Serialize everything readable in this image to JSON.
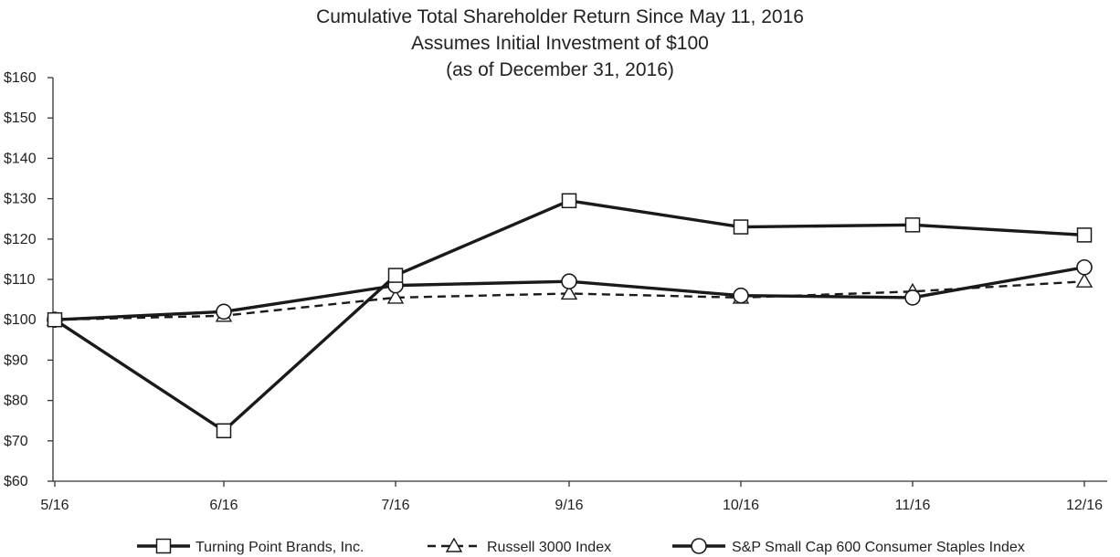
{
  "chart_data": {
    "type": "line",
    "title": "Cumulative Total Shareholder Return Since May 11, 2016",
    "subtitle": "Assumes Initial Investment of $100",
    "subtitle2": "(as of December 31, 2016)",
    "xlabel": "",
    "ylabel": "",
    "categories": [
      "5/16",
      "6/16",
      "7/16",
      "9/16",
      "10/16",
      "11/16",
      "12/16"
    ],
    "ylim": [
      60,
      160
    ],
    "yticks": [
      60,
      70,
      80,
      90,
      100,
      110,
      120,
      130,
      140,
      150,
      160
    ],
    "ytick_labels": [
      "$60",
      "$70",
      "$80",
      "$90",
      "$100",
      "$110",
      "$120",
      "$130",
      "$140",
      "$150",
      "$160"
    ],
    "grid": false,
    "legend_position": "bottom",
    "series": [
      {
        "name": "Turning Point Brands, Inc.",
        "marker": "square",
        "dash": "solid",
        "values": [
          100,
          72.5,
          111,
          129.5,
          123,
          123.5,
          121
        ]
      },
      {
        "name": "Russell 3000 Index",
        "marker": "triangle",
        "dash": "dashed",
        "values": [
          100,
          101,
          105.5,
          106.5,
          105.5,
          107,
          109.5
        ]
      },
      {
        "name": "S&P Small Cap 600 Consumer Staples Index",
        "marker": "circle",
        "dash": "solid",
        "values": [
          100,
          102,
          108.5,
          109.5,
          106,
          105.5,
          113
        ]
      }
    ],
    "colors": {
      "line": "#1a1a1a",
      "axis": "#333333"
    }
  }
}
